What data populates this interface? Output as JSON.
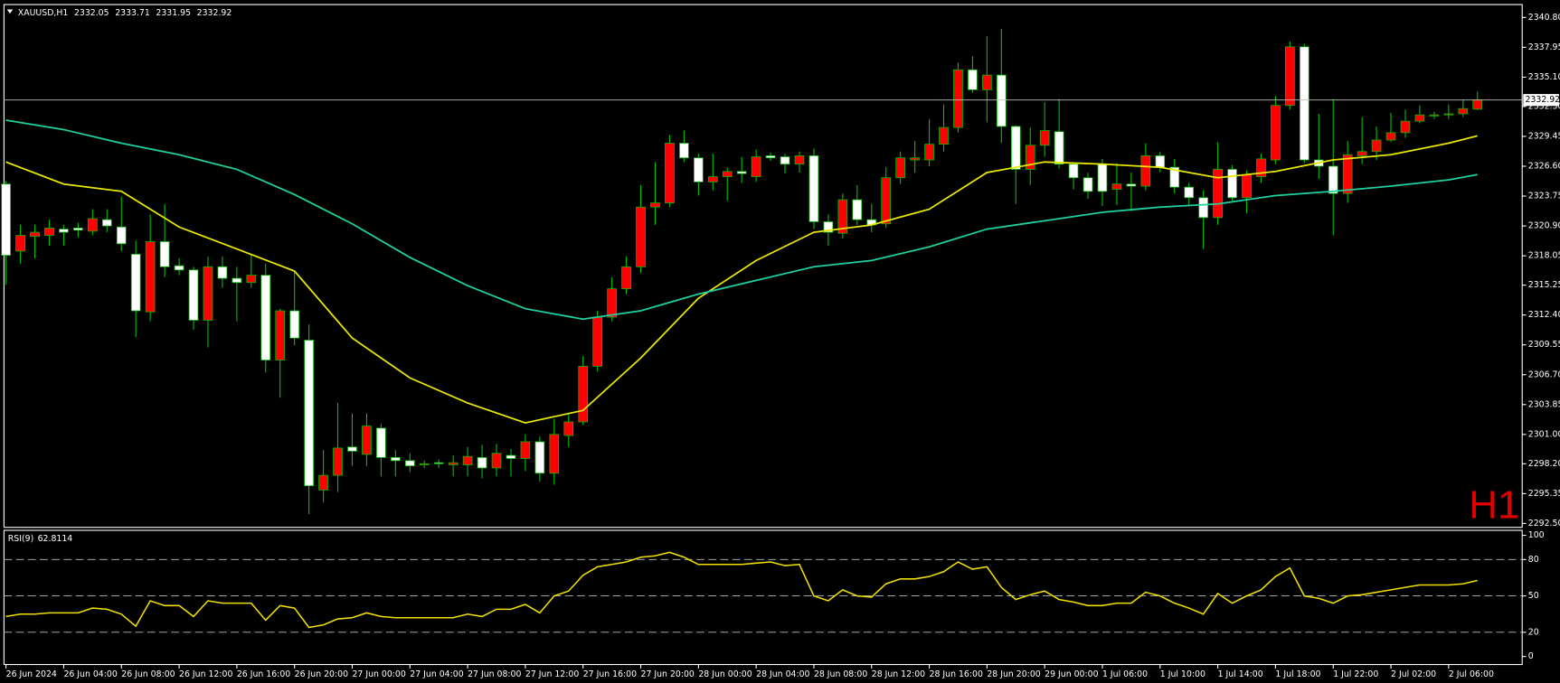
{
  "chart_data": [
    {
      "type": "candlestick",
      "title": "XAUUSD,H1",
      "watermark": "H1",
      "watermark_color": "#e00000",
      "up_color": "#ff0000",
      "down_color": "#ffffff",
      "wick_color": "#00c000",
      "xlim": [
        -0.14,
        105.1
      ],
      "ylim": [
        2292.13,
        2342.03
      ],
      "yticks": [
        {
          "value": 2340.8,
          "label": "2340.80"
        },
        2337.95,
        {
          "value": 2335.1,
          "label": "2335.10"
        },
        {
          "value": 2332.3,
          "label": "2332.30"
        },
        2329.45,
        {
          "value": 2326.6,
          "label": "2326.60"
        },
        2323.75,
        {
          "value": 2320.9,
          "label": "2320.90"
        },
        2318.05,
        2315.25,
        {
          "value": 2312.4,
          "label": "2312.40"
        },
        2309.55,
        {
          "value": 2306.7,
          "label": "2306.70"
        },
        2303.85,
        {
          "value": 2301,
          "label": "2301.00"
        },
        {
          "value": 2298.2,
          "label": "2298.20"
        },
        2295.35,
        {
          "value": 2292.5,
          "label": "2292.50"
        }
      ],
      "current_price": 2332.92,
      "open": [
        2324.9,
        2318.5,
        2319.9,
        2320.0,
        2320.6,
        2320.7,
        2320.4,
        2321.5,
        2320.8,
        2318.2,
        2312.7,
        2319.4,
        2317.1,
        2316.7,
        2311.9,
        2317.0,
        2315.9,
        2315.5,
        2316.2,
        2308.1,
        2312.8,
        2310.0,
        2295.7,
        2297.1,
        2299.8,
        2299.1,
        2301.6,
        2298.8,
        2298.5,
        2298.1,
        2298.3,
        2298.1,
        2298.1,
        2298.8,
        2297.8,
        2299.0,
        2298.7,
        2300.3,
        2297.3,
        2300.9,
        2302.2,
        2307.5,
        2312.2,
        2314.9,
        2317.0,
        2322.7,
        2323.1,
        2328.8,
        2327.4,
        2325.1,
        2325.6,
        2326.1,
        2325.6,
        2327.6,
        2327.5,
        2326.8,
        2327.6,
        2321.3,
        2320.2,
        2323.4,
        2321.5,
        2321.1,
        2325.5,
        2327.2,
        2327.2,
        2328.7,
        2330.3,
        2335.8,
        2333.9,
        2335.3,
        2330.4,
        2326.3,
        2328.6,
        2329.9,
        2326.8,
        2325.5,
        2326.8,
        2324.4,
        2324.9,
        2324.7,
        2327.6,
        2326.5,
        2324.6,
        2323.6,
        2321.7,
        2326.3,
        2323.6,
        2325.6,
        2327.2,
        2332.4,
        2338.0,
        2327.2,
        2326.6,
        2324.0,
        2327.6,
        2328.0,
        2329.1,
        2329.8,
        2330.9,
        2331.4,
        2331.5,
        2331.6,
        2332.05
      ],
      "high": [
        2325.2,
        2321.0,
        2321.0,
        2321.5,
        2321.0,
        2321.2,
        2322.5,
        2322.5,
        2323.7,
        2319.5,
        2322.0,
        2323.0,
        2317.8,
        2317.0,
        2318.0,
        2318.0,
        2317.0,
        2318.2,
        2317.3,
        2313.0,
        2316.5,
        2311.5,
        2299.5,
        2304.0,
        2303.0,
        2303.0,
        2302.0,
        2299.5,
        2299.2,
        2298.5,
        2298.6,
        2299.0,
        2299.8,
        2300.0,
        2300.1,
        2299.6,
        2301.0,
        2300.8,
        2302.5,
        2303.0,
        2308.5,
        2312.8,
        2316.0,
        2318.0,
        2324.8,
        2327.0,
        2329.6,
        2330.0,
        2327.8,
        2327.8,
        2326.5,
        2327.5,
        2328.2,
        2327.9,
        2327.8,
        2328.0,
        2328.3,
        2322.0,
        2324.0,
        2324.8,
        2323.0,
        2326.5,
        2328.0,
        2329.0,
        2331.1,
        2332.5,
        2336.5,
        2337.1,
        2339.0,
        2339.7,
        2330.5,
        2330.3,
        2332.7,
        2333.0,
        2327.0,
        2326.0,
        2327.3,
        2326.9,
        2326.0,
        2328.8,
        2328.0,
        2327.3,
        2325.0,
        2324.3,
        2328.9,
        2326.7,
        2326.2,
        2327.8,
        2333.3,
        2338.5,
        2338.3,
        2331.6,
        2333.0,
        2329.0,
        2331.3,
        2330.4,
        2331.7,
        2332.0,
        2332.4,
        2331.8,
        2332.5,
        2332.9,
        2333.71
      ],
      "low": [
        2315.3,
        2317.3,
        2317.8,
        2319.0,
        2319.0,
        2319.8,
        2320.0,
        2320.3,
        2318.5,
        2310.3,
        2311.8,
        2316.0,
        2316.2,
        2311.0,
        2309.3,
        2315.0,
        2311.8,
        2315.0,
        2306.9,
        2304.5,
        2309.5,
        2293.4,
        2294.5,
        2295.5,
        2298.0,
        2298.0,
        2297.0,
        2297.0,
        2297.4,
        2297.8,
        2297.8,
        2297.0,
        2297.0,
        2296.8,
        2297.0,
        2297.0,
        2297.5,
        2296.5,
        2296.2,
        2299.8,
        2301.9,
        2307.0,
        2311.8,
        2314.4,
        2316.4,
        2321.0,
        2322.7,
        2327.0,
        2323.8,
        2324.3,
        2323.3,
        2325.0,
        2325.1,
        2327.1,
        2325.9,
        2326.0,
        2320.6,
        2319.0,
        2319.7,
        2321.0,
        2320.3,
        2320.7,
        2324.9,
        2326.0,
        2326.6,
        2328.0,
        2329.8,
        2333.6,
        2330.8,
        2328.8,
        2323.0,
        2324.8,
        2327.5,
        2326.4,
        2324.4,
        2323.5,
        2322.8,
        2322.9,
        2322.3,
        2324.3,
        2326.0,
        2324.0,
        2322.8,
        2318.7,
        2321.0,
        2323.3,
        2322.1,
        2325.0,
        2326.8,
        2332.0,
        2326.9,
        2325.4,
        2320.0,
        2323.1,
        2326.8,
        2327.2,
        2328.9,
        2329.3,
        2330.7,
        2331.1,
        2331.1,
        2331.3,
        2331.95
      ],
      "close": [
        2318.1,
        2320.0,
        2320.3,
        2320.7,
        2320.3,
        2320.5,
        2321.6,
        2320.9,
        2319.2,
        2312.8,
        2319.4,
        2317.0,
        2316.7,
        2311.9,
        2317.0,
        2315.9,
        2315.5,
        2316.2,
        2308.1,
        2312.8,
        2310.2,
        2296.1,
        2297.1,
        2299.7,
        2299.4,
        2301.8,
        2298.8,
        2298.5,
        2298.0,
        2298.2,
        2298.2,
        2298.3,
        2298.9,
        2297.8,
        2299.2,
        2298.7,
        2300.3,
        2297.3,
        2301.0,
        2302.2,
        2307.5,
        2312.2,
        2314.9,
        2317.0,
        2322.7,
        2323.1,
        2328.8,
        2327.4,
        2325.1,
        2325.6,
        2326.1,
        2325.9,
        2327.5,
        2327.4,
        2326.8,
        2327.6,
        2321.3,
        2320.3,
        2323.4,
        2321.5,
        2321.0,
        2325.5,
        2327.4,
        2327.4,
        2328.7,
        2330.3,
        2335.8,
        2333.9,
        2335.3,
        2330.4,
        2326.3,
        2328.6,
        2330.0,
        2326.8,
        2325.5,
        2324.2,
        2324.2,
        2324.9,
        2324.7,
        2327.6,
        2326.5,
        2324.6,
        2323.6,
        2321.7,
        2326.3,
        2323.6,
        2325.8,
        2327.3,
        2332.4,
        2338.0,
        2327.2,
        2326.6,
        2324.0,
        2327.7,
        2328.0,
        2329.1,
        2329.8,
        2330.9,
        2331.5,
        2331.5,
        2331.6,
        2332.1,
        2332.92
      ],
      "lines": [
        {
          "color": "#e8e800",
          "x": [
            0,
            4,
            8,
            12,
            16,
            20,
            24,
            28,
            32,
            36,
            40,
            44,
            48,
            52,
            56,
            60,
            64,
            68,
            72,
            76,
            80,
            84,
            88,
            92,
            96,
            100,
            102
          ],
          "values": [
            2327.0,
            2324.9,
            2324.2,
            2320.8,
            2318.7,
            2316.6,
            2310.2,
            2306.4,
            2304.0,
            2302.1,
            2303.3,
            2308.3,
            2314.0,
            2317.6,
            2320.3,
            2321.0,
            2322.5,
            2326.0,
            2327.0,
            2326.8,
            2326.5,
            2325.5,
            2326.1,
            2327.2,
            2327.7,
            2328.8,
            2329.5
          ]
        },
        {
          "color": "#1fd1a0",
          "x": [
            0,
            4,
            8,
            12,
            16,
            20,
            24,
            28,
            32,
            36,
            40,
            44,
            48,
            52,
            56,
            60,
            64,
            68,
            72,
            76,
            80,
            84,
            88,
            92,
            96,
            100,
            102
          ],
          "values": [
            2331.0,
            2330.1,
            2328.8,
            2327.7,
            2326.3,
            2323.9,
            2321.1,
            2317.9,
            2315.2,
            2313.0,
            2312.0,
            2312.8,
            2314.4,
            2315.7,
            2317.0,
            2317.6,
            2318.9,
            2320.6,
            2321.4,
            2322.2,
            2322.7,
            2323.0,
            2323.8,
            2324.2,
            2324.7,
            2325.3,
            2325.8
          ]
        }
      ]
    },
    {
      "type": "line",
      "title": "RSI(9)",
      "color": "#f0e000",
      "level_lines": true,
      "xlim": [
        -0.14,
        105.1
      ],
      "ylim": [
        -6.6,
        104.1
      ],
      "yticks": [
        100,
        80,
        50,
        20,
        0
      ],
      "values": [
        33,
        35,
        35,
        36,
        36,
        36,
        40,
        39,
        35,
        25,
        46,
        42,
        42,
        33,
        46,
        44,
        44,
        44,
        30,
        42,
        40,
        24,
        26,
        31,
        32,
        36,
        33,
        32,
        32,
        32,
        32,
        32,
        35,
        33,
        39,
        39,
        43,
        36,
        50,
        54,
        67,
        74,
        76,
        78,
        82,
        83,
        86,
        82,
        76,
        76,
        76,
        76,
        77,
        78,
        75,
        76,
        50,
        46,
        55,
        50,
        49,
        60,
        64,
        64,
        66,
        70,
        78,
        72,
        74,
        57,
        47,
        51,
        54,
        47,
        45,
        42,
        42,
        44,
        44,
        53,
        50,
        44,
        40,
        35,
        52,
        44,
        50,
        55,
        66,
        73,
        50,
        48,
        44,
        50,
        51,
        53,
        55,
        57,
        59,
        59,
        59,
        60,
        62.8114
      ],
      "xticks": [
        {
          "value": 0,
          "label": "26 Jun 2024"
        },
        {
          "value": 4,
          "label": "26 Jun 04:00"
        },
        {
          "value": 8,
          "label": "26 Jun 08:00"
        },
        {
          "value": 12,
          "label": "26 Jun 12:00"
        },
        {
          "value": 16,
          "label": "26 Jun 16:00"
        },
        {
          "value": 20,
          "label": "26 Jun 20:00"
        },
        {
          "value": 24,
          "label": "27 Jun 00:00"
        },
        {
          "value": 28,
          "label": "27 Jun 04:00"
        },
        {
          "value": 32,
          "label": "27 Jun 08:00"
        },
        {
          "value": 36,
          "label": "27 Jun 12:00"
        },
        {
          "value": 40,
          "label": "27 Jun 16:00"
        },
        {
          "value": 44,
          "label": "27 Jun 20:00"
        },
        {
          "value": 48,
          "label": "28 Jun 00:00"
        },
        {
          "value": 52,
          "label": "28 Jun 04:00"
        },
        {
          "value": 56,
          "label": "28 Jun 08:00"
        },
        {
          "value": 60,
          "label": "28 Jun 12:00"
        },
        {
          "value": 64,
          "label": "28 Jun 16:00"
        },
        {
          "value": 68,
          "label": "28 Jun 20:00"
        },
        {
          "value": 72,
          "label": "29 Jun 00:00"
        },
        {
          "value": 76,
          "label": "1 Jul 06:00"
        },
        {
          "value": 80,
          "label": "1 Jul 10:00"
        },
        {
          "value": 84,
          "label": "1 Jul 14:00"
        },
        {
          "value": 88,
          "label": "1 Jul 18:00"
        },
        {
          "value": 92,
          "label": "1 Jul 22:00"
        },
        {
          "value": 96,
          "label": "2 Jul 02:00"
        },
        {
          "value": 100,
          "label": "2 Jul 06:00"
        }
      ]
    }
  ]
}
